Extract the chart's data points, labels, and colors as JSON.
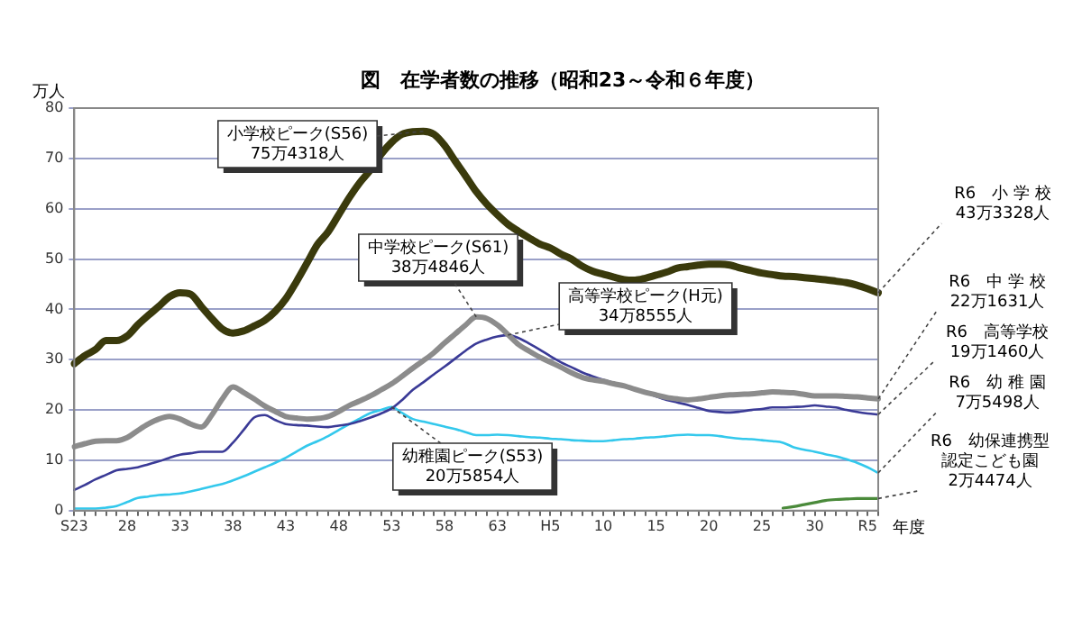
{
  "chart_data": {
    "type": "line",
    "title": "図　在学者数の推移（昭和23～令和６年度）",
    "ylabel": "万人",
    "xlabel": "年度",
    "categories": [
      "S23",
      null,
      null,
      null,
      null,
      "28",
      null,
      null,
      null,
      null,
      "33",
      null,
      null,
      null,
      null,
      "38",
      null,
      null,
      null,
      null,
      "43",
      null,
      null,
      null,
      null,
      "48",
      null,
      null,
      null,
      null,
      "53",
      null,
      null,
      null,
      null,
      "58",
      null,
      null,
      null,
      null,
      "63",
      null,
      null,
      null,
      null,
      "H5",
      null,
      null,
      null,
      null,
      "10",
      null,
      null,
      null,
      null,
      "15",
      null,
      null,
      null,
      null,
      "20",
      null,
      null,
      null,
      null,
      "25",
      null,
      null,
      null,
      null,
      "30",
      null,
      null,
      null,
      null,
      "R5",
      null
    ],
    "ylim": [
      0,
      80
    ],
    "yticks": [
      0,
      10,
      20,
      30,
      40,
      50,
      60,
      70,
      80
    ],
    "grid": "y",
    "legend": false,
    "marker": "none",
    "line_style": "solid",
    "series": [
      {
        "color": "#3a3a0c",
        "values": [
          29.2,
          30.8,
          32,
          33.8,
          33.8,
          34.7,
          36.9,
          38.8,
          40.6,
          42.5,
          43.3,
          43,
          40.6,
          38.2,
          36.1,
          35.3,
          35.7,
          36.7,
          37.8,
          39.6,
          42.1,
          45.5,
          49.2,
          52.9,
          55.4,
          58.8,
          62.2,
          65.2,
          67.7,
          70.8,
          73.2,
          74.8,
          75.3,
          75.4,
          74.8,
          72.6,
          69.5,
          66.5,
          63.4,
          60.9,
          58.8,
          56.9,
          55.5,
          54.2,
          53,
          52.2,
          51,
          50,
          48.6,
          47.6,
          47,
          46.4,
          45.9,
          45.8,
          46.2,
          46.8,
          47.4,
          48.2,
          48.5,
          48.8,
          49,
          49,
          48.8,
          48.2,
          47.7,
          47.2,
          46.9,
          46.6,
          46.5,
          46.3,
          46.1,
          45.9,
          45.6,
          45.3,
          44.8,
          44.1,
          43.3
        ]
      },
      {
        "color": "#8c8c8c",
        "values": [
          12.7,
          13.3,
          13.8,
          13.9,
          13.9,
          14.5,
          15.9,
          17.2,
          18.2,
          18.7,
          18.2,
          17.2,
          16.6,
          19,
          22.2,
          24.6,
          23.5,
          22.2,
          20.8,
          19.7,
          18.7,
          18.4,
          18.2,
          18.3,
          18.7,
          19.7,
          20.9,
          21.8,
          22.8,
          24,
          25.2,
          26.7,
          28.3,
          29.8,
          31.4,
          33.3,
          35.1,
          36.9,
          38.5,
          38.2,
          36.9,
          35,
          33,
          31.7,
          30.5,
          29.5,
          28.5,
          27.4,
          26.5,
          26,
          25.7,
          25.2,
          24.8,
          24.1,
          23.5,
          23,
          22.5,
          22.2,
          22,
          22.2,
          22.5,
          22.8,
          23,
          23.1,
          23.2,
          23.4,
          23.6,
          23.5,
          23.4,
          23.1,
          22.8,
          22.8,
          22.8,
          22.7,
          22.6,
          22.4,
          22.2
        ]
      },
      {
        "color": "#3a3a96",
        "values": [
          4.1,
          5.1,
          6.2,
          7.1,
          8,
          8.3,
          8.6,
          9.2,
          9.8,
          10.5,
          11.1,
          11.4,
          11.7,
          11.7,
          11.7,
          13.5,
          16,
          18.5,
          19,
          18,
          17.2,
          17,
          16.9,
          16.7,
          16.6,
          16.9,
          17.2,
          17.8,
          18.5,
          19.3,
          20.3,
          22,
          24,
          25.5,
          27.1,
          28.6,
          30.2,
          31.8,
          33.2,
          34,
          34.6,
          34.9,
          34.3,
          33.2,
          32,
          30.7,
          29.5,
          28.5,
          27.5,
          26.7,
          26,
          25.4,
          24.8,
          24.1,
          23.5,
          22.7,
          22,
          21.5,
          21,
          20.4,
          19.8,
          19.6,
          19.5,
          19.7,
          20,
          20.2,
          20.5,
          20.5,
          20.6,
          20.7,
          20.9,
          20.7,
          20.5,
          20,
          19.6,
          19.3,
          19.1
        ]
      },
      {
        "color": "#33c8ec",
        "values": [
          0.4,
          0.4,
          0.4,
          0.6,
          0.9,
          1.7,
          2.5,
          2.8,
          3.1,
          3.2,
          3.4,
          3.8,
          4.3,
          4.8,
          5.3,
          6,
          6.8,
          7.7,
          8.6,
          9.5,
          10.5,
          11.7,
          12.9,
          13.8,
          14.8,
          16,
          17.2,
          18.3,
          19.4,
          20,
          20.6,
          19.4,
          18.2,
          17.7,
          17.2,
          16.7,
          16.2,
          15.6,
          15,
          15,
          15.1,
          15,
          14.8,
          14.6,
          14.5,
          14.3,
          14.2,
          14,
          13.9,
          13.8,
          13.8,
          14,
          14.2,
          14.3,
          14.5,
          14.6,
          14.8,
          15,
          15.1,
          15,
          15,
          14.8,
          14.5,
          14.3,
          14.2,
          14,
          13.8,
          13.5,
          12.6,
          12.1,
          11.7,
          11.2,
          10.8,
          10.2,
          9.5,
          8.6,
          7.5
        ]
      },
      {
        "color": "#4a8a3a",
        "values": [
          null,
          null,
          null,
          null,
          null,
          null,
          null,
          null,
          null,
          null,
          null,
          null,
          null,
          null,
          null,
          null,
          null,
          null,
          null,
          null,
          null,
          null,
          null,
          null,
          null,
          null,
          null,
          null,
          null,
          null,
          null,
          null,
          null,
          null,
          null,
          null,
          null,
          null,
          null,
          null,
          null,
          null,
          null,
          null,
          null,
          null,
          null,
          null,
          null,
          null,
          null,
          null,
          null,
          null,
          null,
          null,
          null,
          null,
          null,
          null,
          null,
          null,
          null,
          null,
          null,
          null,
          null,
          0.5,
          0.8,
          1.2,
          1.6,
          2,
          2.2,
          2.3,
          2.4,
          2.4,
          2.4
        ]
      }
    ],
    "annotations": [
      "小学校ピーク(S56)\n75万4318人",
      "中学校ピーク(S61)\n38万4846人",
      "高等学校ピーク(H元)\n34万8555人",
      "幼稚園ピーク(S53)\n20万5854人",
      "R6　小 学 校\n43万3328人",
      "R6　中 学 校\n22万1631人",
      "R6　高等学校\n19万1460人",
      "R6　幼 稚 園\n7万5498人",
      "R6　幼保連携型認定こども園\n2万4474人"
    ]
  }
}
